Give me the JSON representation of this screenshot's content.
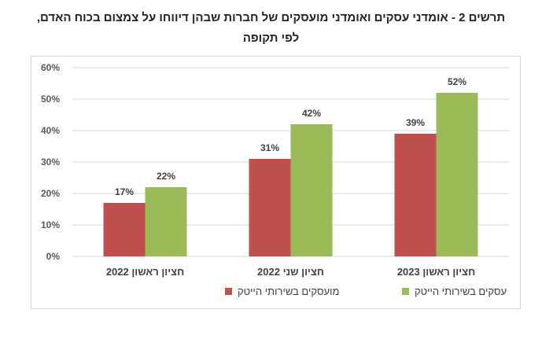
{
  "title_line1": "תרשים 2 - אומדני עסקים ואומדני מועסקים של חברות שבהן דיווחו על צמצום בכוח האדם,",
  "title_line2": "לפי תקופה",
  "chart_data": {
    "type": "bar",
    "categories": [
      "חציון ראשון 2022",
      "חציון שני 2022",
      "חציון ראשון 2023"
    ],
    "series": [
      {
        "name": "מועסקים בשירותי הייטק",
        "values": [
          17,
          31,
          39
        ],
        "labels": [
          "17%",
          "31%",
          "39%"
        ],
        "color": "#c0504d"
      },
      {
        "name": "עסקים בשירותי הייטק",
        "values": [
          22,
          42,
          52
        ],
        "labels": [
          "22%",
          "42%",
          "52%"
        ],
        "color": "#9bbb59"
      }
    ],
    "y_ticks": [
      "0%",
      "10%",
      "20%",
      "30%",
      "40%",
      "50%",
      "60%"
    ],
    "ylim": [
      0,
      60
    ],
    "grid": true,
    "legend_position": "bottom",
    "axis_color": "#d9d9d9",
    "grid_color": "#d9d9d9"
  }
}
